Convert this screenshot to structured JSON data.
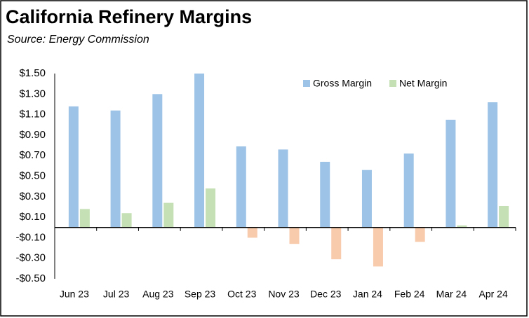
{
  "chart_data": {
    "type": "bar",
    "title": "California Refinery Margins",
    "subtitle": "Source:  Energy Commission",
    "categories": [
      "Jun 23",
      "Jul 23",
      "Aug 23",
      "Sep 23",
      "Oct 23",
      "Nov 23",
      "Dec 23",
      "Jan 24",
      "Feb 24",
      "Mar 24",
      "Apr 24"
    ],
    "series": [
      {
        "name": "Gross Margin",
        "color": "#9dc3e6",
        "values": [
          1.18,
          1.14,
          1.3,
          1.5,
          0.79,
          0.76,
          0.64,
          0.56,
          0.72,
          1.05,
          1.22
        ]
      },
      {
        "name": "Net Margin",
        "color": "#c5e0b4",
        "negative_color": "#f8cbad",
        "values": [
          0.18,
          0.14,
          0.24,
          0.38,
          -0.1,
          -0.16,
          -0.31,
          -0.38,
          -0.14,
          0.02,
          0.21
        ]
      }
    ],
    "ylim": [
      -0.5,
      1.5
    ],
    "yticks": [
      {
        "value": -0.5,
        "label": "-$0.50"
      },
      {
        "value": -0.3,
        "label": "-$0.30"
      },
      {
        "value": -0.1,
        "label": "-$0.10"
      },
      {
        "value": 0.1,
        "label": "$0.10"
      },
      {
        "value": 0.3,
        "label": "$0.30"
      },
      {
        "value": 0.5,
        "label": "$0.50"
      },
      {
        "value": 0.7,
        "label": "$0.70"
      },
      {
        "value": 0.9,
        "label": "$0.90"
      },
      {
        "value": 1.1,
        "label": "$1.10"
      },
      {
        "value": 1.3,
        "label": "$1.30"
      },
      {
        "value": 1.5,
        "label": "$1.50"
      }
    ],
    "grid": false,
    "legend": "top-right"
  }
}
